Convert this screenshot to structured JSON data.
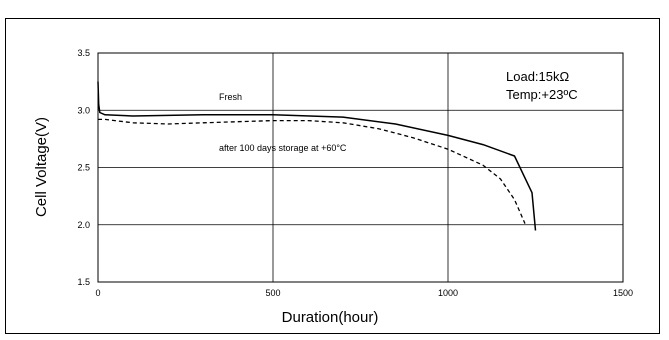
{
  "chart_data": {
    "type": "line",
    "title": "",
    "xlabel": "Duration(hour)",
    "ylabel": "Cell Voltage(V)",
    "xlim": [
      0,
      1500
    ],
    "ylim": [
      1.5,
      3.5
    ],
    "x_ticks": [
      "0",
      "500",
      "1000",
      "1500"
    ],
    "y_ticks": [
      "1.5",
      "2.0",
      "2.5",
      "3.0",
      "3.5"
    ],
    "grid": true,
    "conditions": [
      "Load:15kΩ",
      "Temp:+23ºC"
    ],
    "series": [
      {
        "name": "Fresh",
        "style": "solid",
        "color": "#000000",
        "x": [
          0,
          2,
          5,
          20,
          100,
          300,
          500,
          700,
          850,
          1000,
          1100,
          1190,
          1240,
          1250
        ],
        "y": [
          3.25,
          3.05,
          2.98,
          2.96,
          2.95,
          2.96,
          2.96,
          2.94,
          2.88,
          2.78,
          2.7,
          2.6,
          2.28,
          1.95
        ]
      },
      {
        "name": "after 100 days storage at +60°C",
        "style": "dashed",
        "color": "#000000",
        "x": [
          0,
          20,
          100,
          200,
          300,
          500,
          600,
          700,
          800,
          900,
          1000,
          1100,
          1150,
          1190,
          1220
        ],
        "y": [
          2.92,
          2.92,
          2.89,
          2.88,
          2.89,
          2.91,
          2.91,
          2.89,
          2.84,
          2.76,
          2.66,
          2.52,
          2.4,
          2.22,
          2.01
        ]
      }
    ]
  }
}
